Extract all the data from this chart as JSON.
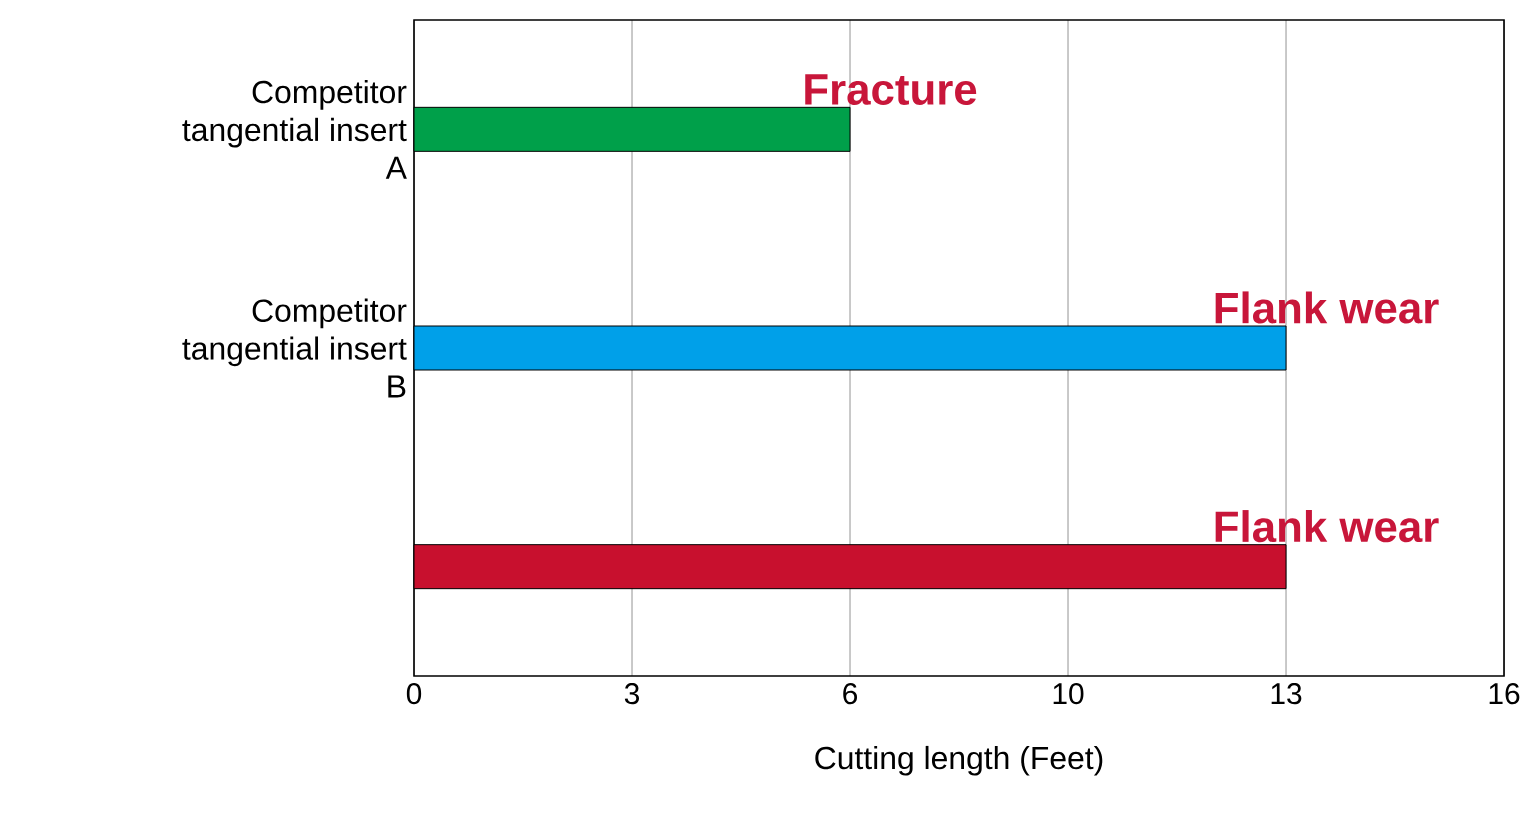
{
  "chart_data": {
    "type": "bar",
    "orientation": "horizontal",
    "categories": [
      "Competitor tangential insert A",
      "Competitor tangential insert B",
      null
    ],
    "values": [
      6.4,
      12.8,
      12.8
    ],
    "colors": [
      "#00a04a",
      "#00a0e9",
      "#c8102e"
    ],
    "xlabel": "Cutting length (Feet)",
    "xlim": [
      0,
      16
    ],
    "xticks": [
      {
        "value": 0,
        "label": "0"
      },
      {
        "value": 3.2,
        "label": "3"
      },
      {
        "value": 6.4,
        "label": "6"
      },
      {
        "value": 9.6,
        "label": "10"
      },
      {
        "value": 12.8,
        "label": "13"
      },
      {
        "value": 16,
        "label": "16"
      }
    ],
    "grid": "x",
    "annotations": [
      "Fracture",
      "Flank wear",
      "Flank wear"
    ]
  }
}
